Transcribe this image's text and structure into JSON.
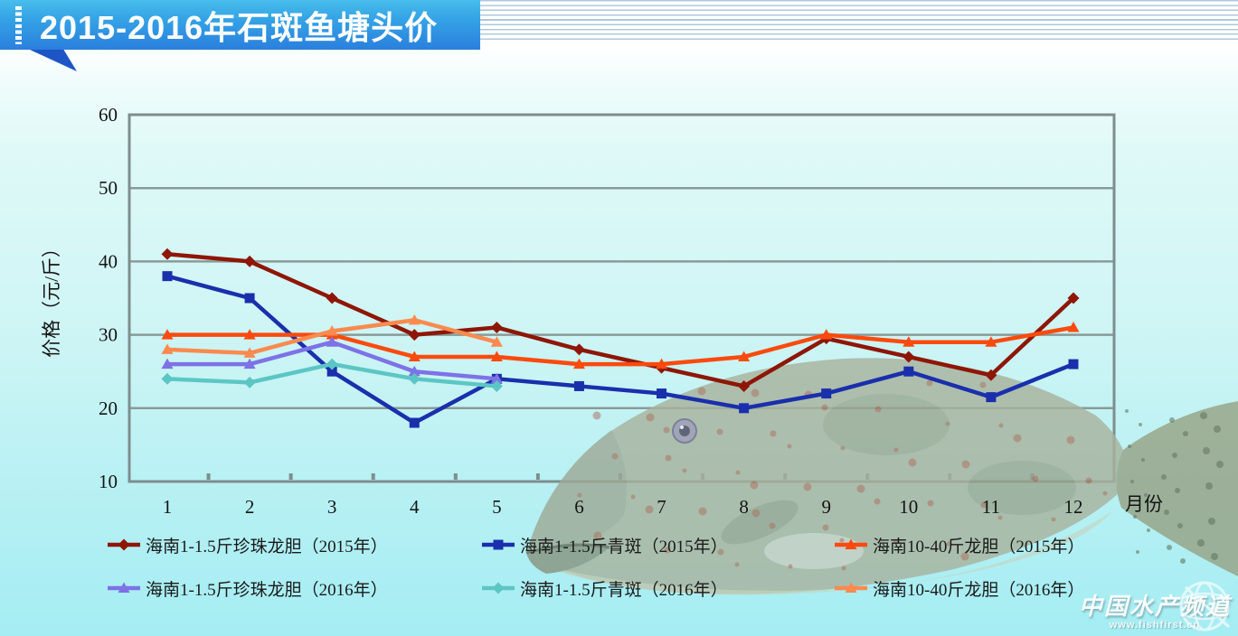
{
  "banner": {
    "title": "2015-2016年石斑鱼塘头价"
  },
  "watermark": {
    "name": "中国水产频道",
    "url": "www.fishfirst.cn"
  },
  "chart_data": {
    "type": "line",
    "title": "2015-2016年石斑鱼塘头价",
    "categories": [
      "1",
      "2",
      "3",
      "4",
      "5",
      "6",
      "7",
      "8",
      "9",
      "10",
      "11",
      "12"
    ],
    "xlabel": "月份",
    "ylabel": "价格（元/斤）",
    "ylim": [
      10,
      60
    ],
    "yticks": [
      10,
      20,
      30,
      40,
      50,
      60
    ],
    "grid": true,
    "legend_position": "bottom",
    "series": [
      {
        "name": "海南1-1.5斤珍珠龙胆（2015年）",
        "color": "#8e1606",
        "marker": "diamond",
        "values": [
          41,
          40,
          35,
          30,
          31,
          28,
          25.5,
          23,
          29.5,
          27,
          24.5,
          35
        ]
      },
      {
        "name": "海南1-1.5斤青斑（2015年）",
        "color": "#1a2fac",
        "marker": "square",
        "values": [
          38,
          35,
          25,
          18,
          24,
          23,
          22,
          20,
          22,
          25,
          21.5,
          26
        ]
      },
      {
        "name": "海南10-40斤龙胆（2015年）",
        "color": "#fb4a0d",
        "marker": "triangle",
        "values": [
          30,
          30,
          30,
          27,
          27,
          26,
          26,
          27,
          30,
          29,
          29,
          31
        ]
      },
      {
        "name": "海南1-1.5斤珍珠龙胆（2016年）",
        "color": "#7d72e6",
        "marker": "triangle",
        "values": [
          26,
          26,
          29,
          25,
          24,
          null,
          null,
          null,
          null,
          null,
          null,
          null
        ]
      },
      {
        "name": "海南1-1.5斤青斑（2016年）",
        "color": "#5cc6c4",
        "marker": "diamond",
        "values": [
          24,
          23.5,
          26,
          24,
          23,
          null,
          null,
          null,
          null,
          null,
          null,
          null
        ]
      },
      {
        "name": "海南10-40斤龙胆（2016年）",
        "color": "#fa8a4e",
        "marker": "triangle",
        "values": [
          28,
          27.5,
          30.5,
          32,
          29,
          null,
          null,
          null,
          null,
          null,
          null,
          null
        ]
      }
    ]
  }
}
